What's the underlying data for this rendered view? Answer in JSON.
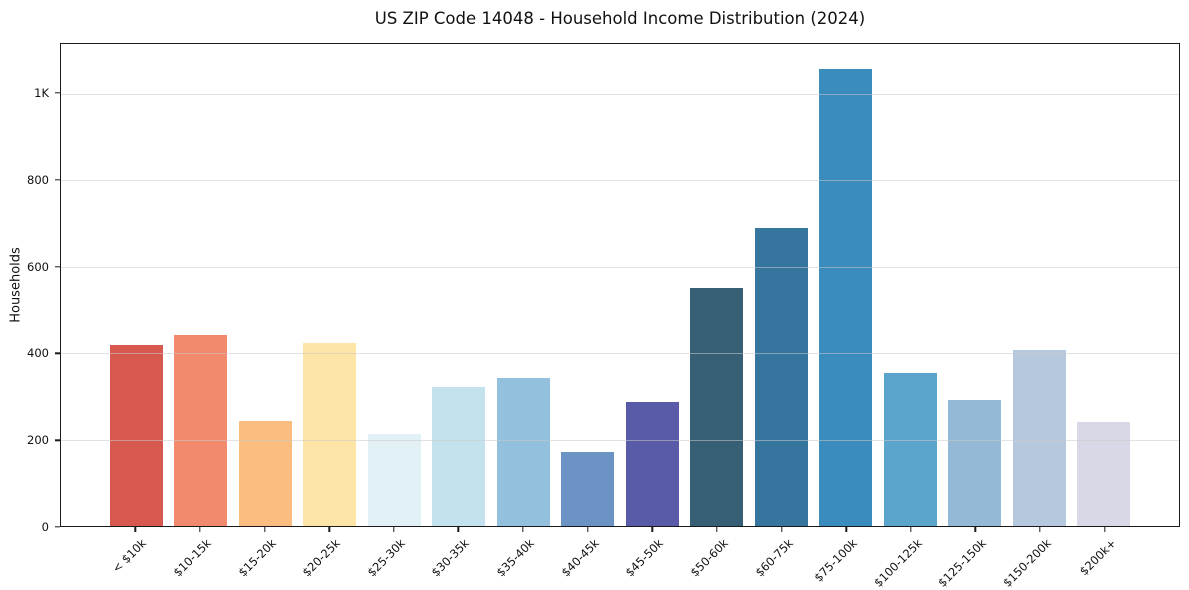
{
  "chart_data": {
    "type": "bar",
    "title": "US ZIP Code 14048 - Household Income Distribution (2024)",
    "xlabel": "",
    "ylabel": "Households",
    "categories": [
      "< $10k",
      "$10-15k",
      "$15-20k",
      "$20-25k",
      "$25-30k",
      "$30-35k",
      "$35-40k",
      "$40-45k",
      "$45-50k",
      "$50-60k",
      "$60-75k",
      "$75-100k",
      "$100-125k",
      "$125-150k",
      "$150-200k",
      "$200k+"
    ],
    "values": [
      418,
      441,
      243,
      424,
      214,
      322,
      342,
      171,
      287,
      551,
      689,
      1058,
      353,
      292,
      407,
      240
    ],
    "bar_colors": [
      "#d6584f",
      "#f28a6e",
      "#fbbc80",
      "#fde5a7",
      "#e2f1f6",
      "#c4e2ee",
      "#92c0dd",
      "#6b93c4",
      "#5a5ba8",
      "#365f75",
      "#35759e",
      "#3a8cbd",
      "#5ba4cc",
      "#93b9d6",
      "#b6c8de",
      "#d8d8e6"
    ],
    "ylim": [
      0,
      1115
    ],
    "yticks": [
      {
        "value": 0,
        "label": "0"
      },
      {
        "value": 200,
        "label": "200"
      },
      {
        "value": 400,
        "label": "400"
      },
      {
        "value": 600,
        "label": "600"
      },
      {
        "value": 800,
        "label": "800"
      },
      {
        "value": 1000,
        "label": "1K"
      }
    ],
    "grid": "horizontal-over-bars",
    "legend": "none",
    "background": "#ffffff",
    "spine_color": "#1a1a1a",
    "gridline_color": "#cbcbcb"
  }
}
